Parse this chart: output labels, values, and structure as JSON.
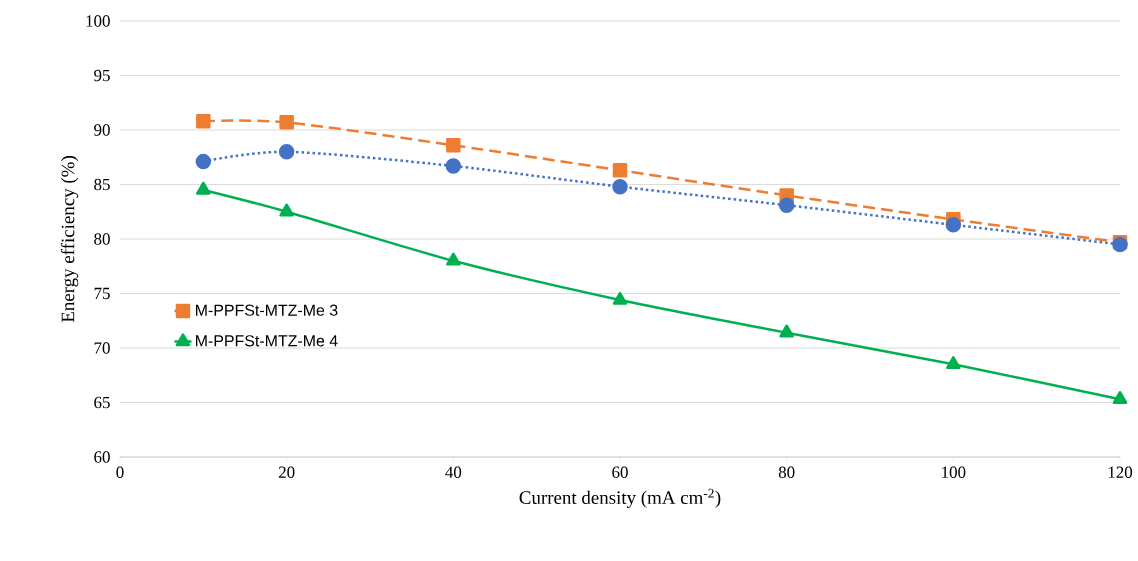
{
  "chart_data": {
    "type": "line",
    "xlabel": "Current density (mA cm$^{-2}$)",
    "ylabel": "Energy efficiency (%)",
    "x": [
      10,
      20,
      40,
      60,
      80,
      100,
      120
    ],
    "series": [
      {
        "color": "#4472c4",
        "marker": "circle",
        "line_style": "dotted",
        "values": [
          87.1,
          88.0,
          86.7,
          84.8,
          83.1,
          81.3,
          79.5
        ]
      },
      {
        "name": "M-PPFSt-MTZ-Me 3",
        "color": "#ed7d31",
        "marker": "square",
        "line_style": "dashed",
        "values": [
          90.8,
          90.7,
          88.6,
          86.3,
          84.0,
          81.8,
          79.7
        ]
      },
      {
        "name": "M-PPFSt-MTZ-Me 4",
        "color": "#00b050",
        "marker": "triangle",
        "line_style": "solid",
        "values": [
          84.5,
          82.5,
          78.0,
          74.4,
          71.4,
          68.5,
          65.3
        ]
      }
    ],
    "xlim": [
      0,
      120
    ],
    "xticks": [
      0,
      20,
      40,
      60,
      80,
      100,
      120
    ],
    "ylim": [
      60,
      100
    ],
    "yticks": [
      60,
      65,
      70,
      75,
      80,
      85,
      90,
      95,
      100
    ],
    "grid": "y",
    "legend": "left"
  }
}
